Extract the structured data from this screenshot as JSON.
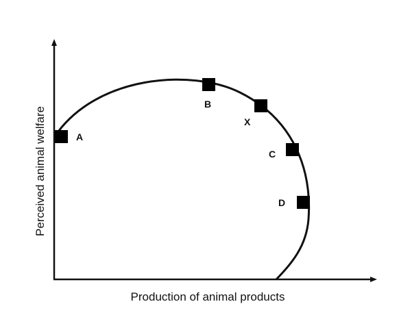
{
  "diagram": {
    "x_axis_label": "Production of animal products",
    "y_axis_label": "Perceived animal welfare",
    "colors": {
      "line": "#111111",
      "marker": "#000000",
      "background": "#ffffff"
    },
    "points": [
      {
        "id": "A",
        "label": "A"
      },
      {
        "id": "B",
        "label": "B"
      },
      {
        "id": "X",
        "label": "X"
      },
      {
        "id": "C",
        "label": "C"
      },
      {
        "id": "D",
        "label": "D"
      }
    ]
  }
}
